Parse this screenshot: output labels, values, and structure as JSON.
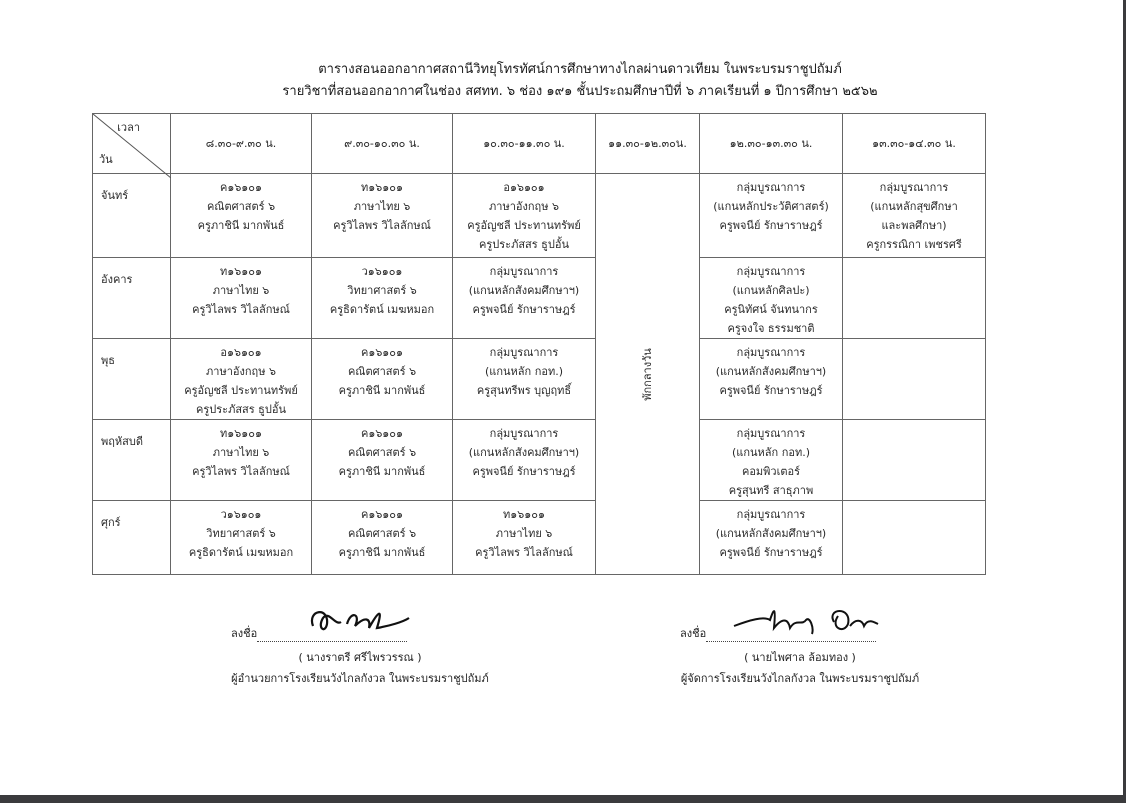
{
  "header": {
    "title": "ตารางสอนออกอากาศสถานีวิทยุโทรทัศน์การศึกษาทางไกลผ่านดาวเทียม ในพระบรมราชูปถัมภ์",
    "subtitle": "รายวิชาที่สอนออกอากาศในช่อง  สศทท. ๖   ช่อง ๑๙๑   ชั้นประถมศึกษาปีที่ ๖   ภาคเรียนที่ ๑   ปีการศึกษา ๒๕๖๒"
  },
  "table": {
    "corner_time": "เวลา",
    "corner_day": "วัน",
    "columns": [
      "๘.๓๐-๙.๓๐ น.",
      "๙.๓๐-๑๐.๓๐ น.",
      "๑๐.๓๐-๑๑.๓๐ น.",
      "๑๑.๓๐-๑๒.๓๐น.",
      "๑๒.๓๐-๑๓.๓๐ น.",
      "๑๓.๓๐-๑๔.๓๐ น."
    ],
    "lunch": "พักกลางวัน",
    "rows": [
      {
        "day": "จันทร์",
        "cells": [
          [
            "ค๑๖๑๐๑",
            "คณิตศาสตร์ ๖",
            "ครูภาชินี มากพันธ์"
          ],
          [
            "ท๑๖๑๐๑",
            "ภาษาไทย ๖",
            "ครูวิไลพร วิไลลักษณ์"
          ],
          [
            "อ๑๖๑๐๑",
            "ภาษาอังกฤษ ๖",
            "ครูอัญชลี ประทานทรัพย์",
            "ครูประภัสสร ธูปอั้น"
          ],
          [
            "กลุ่มบูรณาการ",
            "(แกนหลักประวัติศาสตร์)",
            "ครูพจนีย์ รักษาราษฎร์"
          ],
          [
            "กลุ่มบูรณาการ",
            "(แกนหลักสุขศึกษา",
            "และพลศึกษา)",
            "ครูกรรณิกา เพชรศรี"
          ]
        ]
      },
      {
        "day": "อังคาร",
        "cells": [
          [
            "ท๑๖๑๐๑",
            "ภาษาไทย ๖",
            "ครูวิไลพร วิไลลักษณ์"
          ],
          [
            "ว๑๖๑๐๑",
            "วิทยาศาสตร์ ๖",
            "ครูธิดารัตน์ เมฆหมอก"
          ],
          [
            "กลุ่มบูรณาการ",
            "(แกนหลักสังคมศึกษาฯ)",
            "ครูพจนีย์ รักษาราษฎร์"
          ],
          [
            "กลุ่มบูรณาการ",
            "(แกนหลักศิลปะ)",
            "ครูนิทัศน์ จันทนากร",
            "ครูจงใจ  ธรรมชาติ"
          ],
          []
        ]
      },
      {
        "day": "พุธ",
        "cells": [
          [
            "อ๑๖๑๐๑",
            "ภาษาอังกฤษ ๖",
            "ครูอัญชลี ประทานทรัพย์",
            "ครูประภัสสร ธูปอั้น"
          ],
          [
            "ค๑๖๑๐๑",
            "คณิตศาสตร์ ๖",
            "ครูภาชินี มากพันธ์"
          ],
          [
            "กลุ่มบูรณาการ",
            "(แกนหลัก กอท.)",
            "ครูสุนทรีพร บุญฤทธิ์"
          ],
          [
            "กลุ่มบูรณาการ",
            "(แกนหลักสังคมศึกษาฯ)",
            "ครูพจนีย์ รักษาราษฎร์"
          ],
          []
        ]
      },
      {
        "day": "พฤหัสบดี",
        "cells": [
          [
            "ท๑๖๑๐๑",
            "ภาษาไทย ๖",
            "ครูวิไลพร วิไลลักษณ์"
          ],
          [
            "ค๑๖๑๐๑",
            "คณิตศาสตร์ ๖",
            "ครูภาชินี มากพันธ์"
          ],
          [
            "กลุ่มบูรณาการ",
            "(แกนหลักสังคมศึกษาฯ)",
            "ครูพจนีย์ รักษาราษฎร์"
          ],
          [
            "กลุ่มบูรณาการ",
            "(แกนหลัก กอท.)",
            "คอมพิวเตอร์",
            "ครูสุนทรี สาธุภาพ"
          ],
          []
        ]
      },
      {
        "day": "ศุกร์",
        "cells": [
          [
            "ว๑๖๑๐๑",
            "วิทยาศาสตร์ ๖",
            "ครูธิดารัตน์ เมฆหมอก"
          ],
          [
            "ค๑๖๑๐๑",
            "คณิตศาสตร์ ๖",
            "ครูภาชินี มากพันธ์"
          ],
          [
            "ท๑๖๑๐๑",
            "ภาษาไทย ๖",
            "ครูวิไลพร วิไลลักษณ์"
          ],
          [
            "กลุ่มบูรณาการ",
            "(แกนหลักสังคมศึกษาฯ)",
            "ครูพจนีย์ รักษาราษฎร์"
          ],
          []
        ]
      }
    ]
  },
  "signatures": [
    {
      "label": "ลงชื่อ",
      "name": "( นางราตรี  ศรีไพรวรรณ )",
      "position": "ผู้อำนวยการโรงเรียนวังไกลกังวล ในพระบรมราชูปถัมภ์"
    },
    {
      "label": "ลงชื่อ",
      "name": "( นายไพศาล ล้อมทอง )",
      "position": "ผู้จัดการโรงเรียนวังไกลกังวล ในพระบรมราชูปถัมภ์"
    }
  ]
}
